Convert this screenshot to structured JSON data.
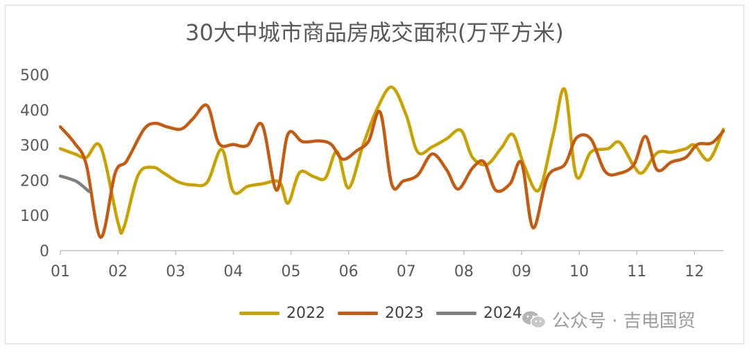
{
  "chart_data": {
    "type": "line",
    "title": "30大中城市商品房成交面积(万平方米)",
    "xlabel": "",
    "ylabel": "",
    "ylim": [
      0,
      500
    ],
    "yticks": [
      "0",
      "100",
      "200",
      "300",
      "400",
      "500"
    ],
    "x_tick_labels": [
      "01",
      "02",
      "03",
      "04",
      "05",
      "06",
      "07",
      "08",
      "09",
      "10",
      "11",
      "12"
    ],
    "xlim": [
      1,
      12.5
    ],
    "grid": false,
    "legend": "bottom",
    "series": [
      {
        "name": "2022",
        "color": "#c9a200",
        "points": [
          [
            1,
            290
          ],
          [
            1.25,
            275
          ],
          [
            1.45,
            265
          ],
          [
            1.7,
            295
          ],
          [
            2.0,
            80
          ],
          [
            2.1,
            65
          ],
          [
            2.35,
            215
          ],
          [
            2.6,
            237
          ],
          [
            2.8,
            220
          ],
          [
            3.05,
            195
          ],
          [
            3.3,
            187
          ],
          [
            3.55,
            195
          ],
          [
            3.8,
            288
          ],
          [
            4.0,
            168
          ],
          [
            4.25,
            183
          ],
          [
            4.5,
            190
          ],
          [
            4.8,
            195
          ],
          [
            4.95,
            135
          ],
          [
            5.15,
            222
          ],
          [
            5.4,
            210
          ],
          [
            5.6,
            207
          ],
          [
            5.8,
            282
          ],
          [
            6.0,
            178
          ],
          [
            6.25,
            300
          ],
          [
            6.5,
            405
          ],
          [
            6.75,
            465
          ],
          [
            7.0,
            385
          ],
          [
            7.2,
            280
          ],
          [
            7.45,
            295
          ],
          [
            7.7,
            318
          ],
          [
            7.95,
            342
          ],
          [
            8.15,
            265
          ],
          [
            8.4,
            245
          ],
          [
            8.65,
            292
          ],
          [
            8.85,
            330
          ],
          [
            9.05,
            240
          ],
          [
            9.3,
            172
          ],
          [
            9.55,
            330
          ],
          [
            9.75,
            458
          ],
          [
            9.95,
            212
          ],
          [
            10.2,
            280
          ],
          [
            10.5,
            290
          ],
          [
            10.7,
            308
          ],
          [
            10.95,
            240
          ],
          [
            11.1,
            222
          ],
          [
            11.35,
            278
          ],
          [
            11.6,
            280
          ],
          [
            11.85,
            290
          ],
          [
            12.0,
            300
          ],
          [
            12.25,
            258
          ],
          [
            12.5,
            345
          ]
        ]
      },
      {
        "name": "2023",
        "color": "#c55a11",
        "points": [
          [
            1,
            352
          ],
          [
            1.25,
            305
          ],
          [
            1.45,
            245
          ],
          [
            1.7,
            38
          ],
          [
            1.95,
            220
          ],
          [
            2.15,
            255
          ],
          [
            2.45,
            345
          ],
          [
            2.65,
            362
          ],
          [
            2.85,
            352
          ],
          [
            3.1,
            346
          ],
          [
            3.3,
            375
          ],
          [
            3.55,
            412
          ],
          [
            3.75,
            305
          ],
          [
            4.0,
            302
          ],
          [
            4.25,
            300
          ],
          [
            4.5,
            358
          ],
          [
            4.75,
            172
          ],
          [
            4.95,
            332
          ],
          [
            5.2,
            310
          ],
          [
            5.5,
            312
          ],
          [
            5.7,
            302
          ],
          [
            5.9,
            260
          ],
          [
            6.15,
            285
          ],
          [
            6.35,
            312
          ],
          [
            6.55,
            393
          ],
          [
            6.75,
            188
          ],
          [
            6.95,
            198
          ],
          [
            7.2,
            215
          ],
          [
            7.45,
            275
          ],
          [
            7.7,
            230
          ],
          [
            7.9,
            175
          ],
          [
            8.15,
            235
          ],
          [
            8.35,
            252
          ],
          [
            8.55,
            172
          ],
          [
            8.8,
            190
          ],
          [
            9.0,
            250
          ],
          [
            9.2,
            65
          ],
          [
            9.45,
            210
          ],
          [
            9.75,
            245
          ],
          [
            9.95,
            320
          ],
          [
            10.2,
            318
          ],
          [
            10.45,
            225
          ],
          [
            10.7,
            220
          ],
          [
            10.95,
            245
          ],
          [
            11.15,
            325
          ],
          [
            11.35,
            230
          ],
          [
            11.6,
            252
          ],
          [
            11.85,
            265
          ],
          [
            12.05,
            302
          ],
          [
            12.3,
            306
          ],
          [
            12.5,
            340
          ]
        ]
      },
      {
        "name": "2024",
        "color": "#7f7f7f",
        "points": [
          [
            1,
            212
          ],
          [
            1.15,
            205
          ],
          [
            1.3,
            195
          ],
          [
            1.45,
            175
          ],
          [
            1.5,
            168
          ]
        ]
      }
    ]
  },
  "watermark": "公众号 · 吉电国贸"
}
